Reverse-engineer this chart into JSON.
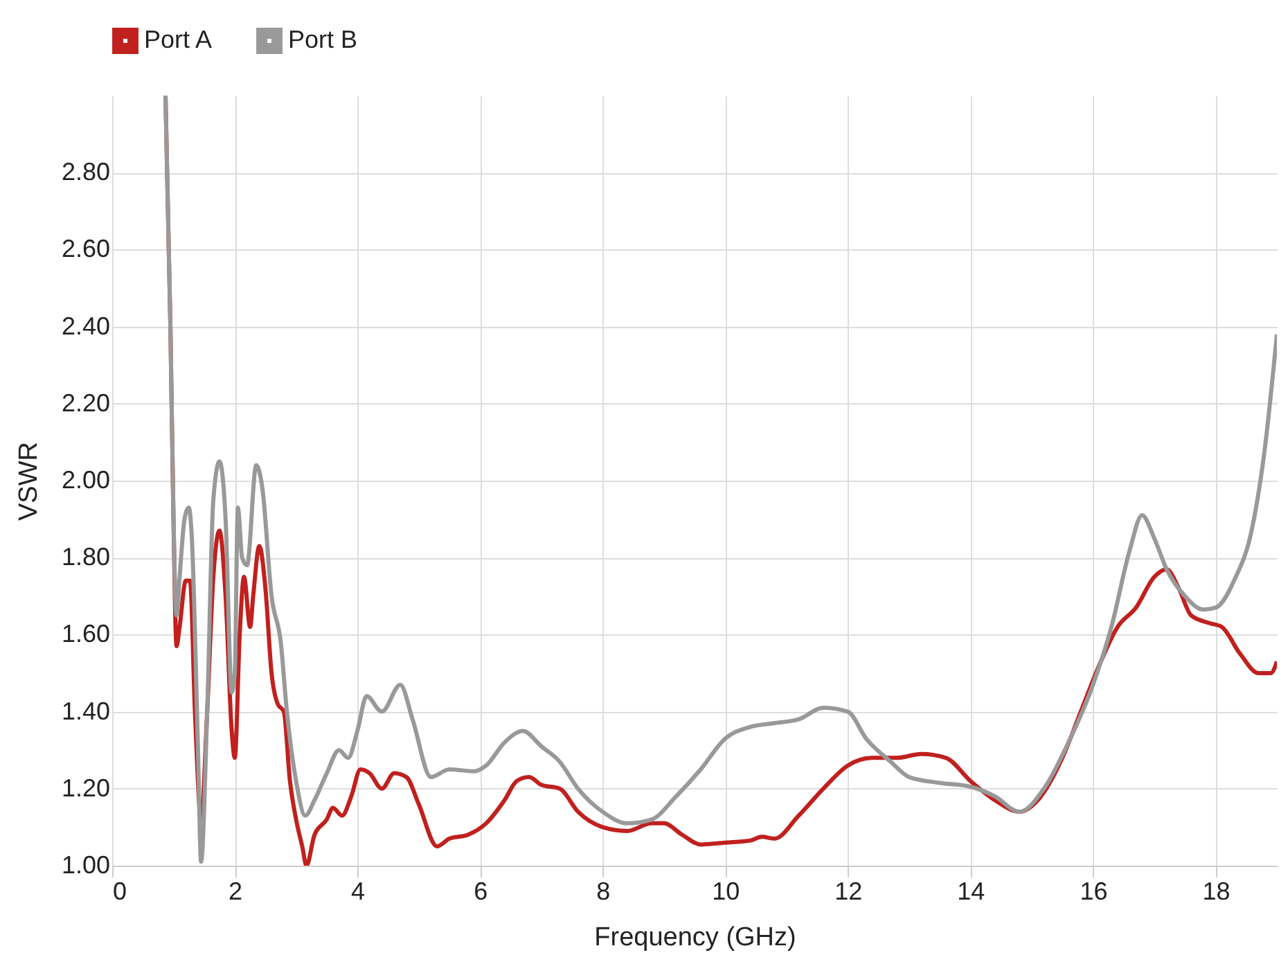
{
  "chart_data": {
    "type": "line",
    "xlabel": "Frequency (GHz)",
    "ylabel": "VSWR",
    "xlim": [
      0,
      19
    ],
    "xticks": [
      0,
      2,
      4,
      6,
      8,
      10,
      12,
      14,
      16,
      18
    ],
    "ylim": [
      1,
      3
    ],
    "yticks": [
      {
        "value": 1,
        "label": "1.00"
      },
      {
        "value": 1.2,
        "label": "1.20"
      },
      {
        "value": 1.4,
        "label": "1.40"
      },
      {
        "value": 1.6,
        "label": "1.60"
      },
      {
        "value": 1.8,
        "label": "1.80"
      },
      {
        "value": 2,
        "label": "2.00"
      },
      {
        "value": 2.2,
        "label": "2.20"
      },
      {
        "value": 2.4,
        "label": "2.40"
      },
      {
        "value": 2.6,
        "label": "2.60"
      },
      {
        "value": 2.8,
        "label": "2.80"
      }
    ],
    "grid": true,
    "legend": "top",
    "line_style": "solid",
    "marker": "none",
    "series": [
      {
        "name": "Port A",
        "color": "#c0201e",
        "x": [
          0.87,
          0.95,
          1.0,
          1.05,
          1.1,
          1.2,
          1.27,
          1.35,
          1.45,
          1.55,
          1.65,
          1.75,
          1.85,
          1.95,
          2.0,
          2.08,
          2.15,
          2.25,
          2.3,
          2.4,
          2.5,
          2.6,
          2.7,
          2.8,
          2.9,
          3.0,
          3.1,
          3.17,
          3.3,
          3.5,
          3.6,
          3.75,
          3.9,
          4.05,
          4.2,
          4.4,
          4.6,
          4.8,
          5.0,
          5.3,
          5.5,
          5.8,
          6.1,
          6.4,
          6.6,
          6.8,
          7.0,
          7.3,
          7.6,
          8.0,
          8.4,
          8.8,
          9.0,
          9.3,
          9.6,
          10.0,
          10.4,
          10.6,
          10.8,
          11.2,
          11.6,
          12.0,
          12.4,
          12.8,
          13.2,
          13.6,
          14.0,
          14.4,
          14.8,
          15.1,
          15.5,
          15.8,
          16.1,
          16.4,
          16.7,
          17.0,
          17.2,
          17.4,
          17.6,
          17.9,
          18.1,
          18.4,
          18.7,
          18.9,
          19.0
        ],
        "values": [
          3.0,
          2.4,
          1.9,
          1.57,
          1.62,
          1.74,
          1.74,
          1.4,
          1.12,
          1.4,
          1.75,
          1.87,
          1.7,
          1.35,
          1.28,
          1.6,
          1.75,
          1.62,
          1.7,
          1.83,
          1.72,
          1.5,
          1.42,
          1.4,
          1.22,
          1.12,
          1.05,
          1.0,
          1.08,
          1.12,
          1.15,
          1.13,
          1.18,
          1.25,
          1.24,
          1.2,
          1.24,
          1.23,
          1.16,
          1.05,
          1.07,
          1.08,
          1.11,
          1.17,
          1.22,
          1.23,
          1.21,
          1.2,
          1.14,
          1.1,
          1.09,
          1.11,
          1.11,
          1.08,
          1.055,
          1.06,
          1.065,
          1.075,
          1.07,
          1.13,
          1.2,
          1.26,
          1.28,
          1.28,
          1.29,
          1.28,
          1.22,
          1.17,
          1.14,
          1.17,
          1.28,
          1.4,
          1.52,
          1.62,
          1.67,
          1.75,
          1.77,
          1.72,
          1.65,
          1.63,
          1.62,
          1.55,
          1.5,
          1.5,
          1.53
        ]
      },
      {
        "name": "Port B",
        "color": "#999999",
        "x": [
          0.87,
          0.95,
          1.0,
          1.05,
          1.1,
          1.18,
          1.25,
          1.3,
          1.4,
          1.45,
          1.55,
          1.65,
          1.75,
          1.85,
          1.95,
          2.0,
          2.05,
          2.12,
          2.2,
          2.35,
          2.45,
          2.6,
          2.75,
          2.85,
          3.0,
          3.15,
          3.3,
          3.5,
          3.7,
          3.85,
          4.0,
          4.15,
          4.4,
          4.7,
          4.9,
          5.2,
          5.5,
          5.9,
          6.1,
          6.4,
          6.7,
          7.0,
          7.3,
          7.6,
          8.0,
          8.4,
          8.8,
          9.2,
          9.6,
          10.0,
          10.4,
          10.8,
          11.2,
          11.6,
          12.0,
          12.3,
          12.7,
          13.0,
          13.5,
          14.0,
          14.4,
          14.8,
          15.2,
          15.6,
          16.0,
          16.3,
          16.6,
          16.8,
          17.0,
          17.2,
          17.5,
          17.8,
          18.0,
          18.3,
          18.6,
          18.8,
          19.0
        ],
        "values": [
          3.0,
          2.4,
          1.9,
          1.65,
          1.75,
          1.9,
          1.93,
          1.85,
          1.3,
          1.01,
          1.4,
          1.95,
          2.05,
          1.9,
          1.45,
          1.5,
          1.93,
          1.8,
          1.78,
          2.04,
          1.98,
          1.7,
          1.58,
          1.4,
          1.22,
          1.13,
          1.17,
          1.24,
          1.3,
          1.28,
          1.35,
          1.44,
          1.4,
          1.47,
          1.38,
          1.23,
          1.25,
          1.245,
          1.26,
          1.32,
          1.35,
          1.31,
          1.27,
          1.2,
          1.14,
          1.11,
          1.12,
          1.18,
          1.25,
          1.33,
          1.36,
          1.37,
          1.38,
          1.41,
          1.4,
          1.33,
          1.27,
          1.23,
          1.215,
          1.205,
          1.18,
          1.14,
          1.2,
          1.32,
          1.47,
          1.62,
          1.82,
          1.91,
          1.85,
          1.77,
          1.7,
          1.665,
          1.67,
          1.74,
          1.88,
          2.08,
          2.38
        ]
      }
    ]
  }
}
